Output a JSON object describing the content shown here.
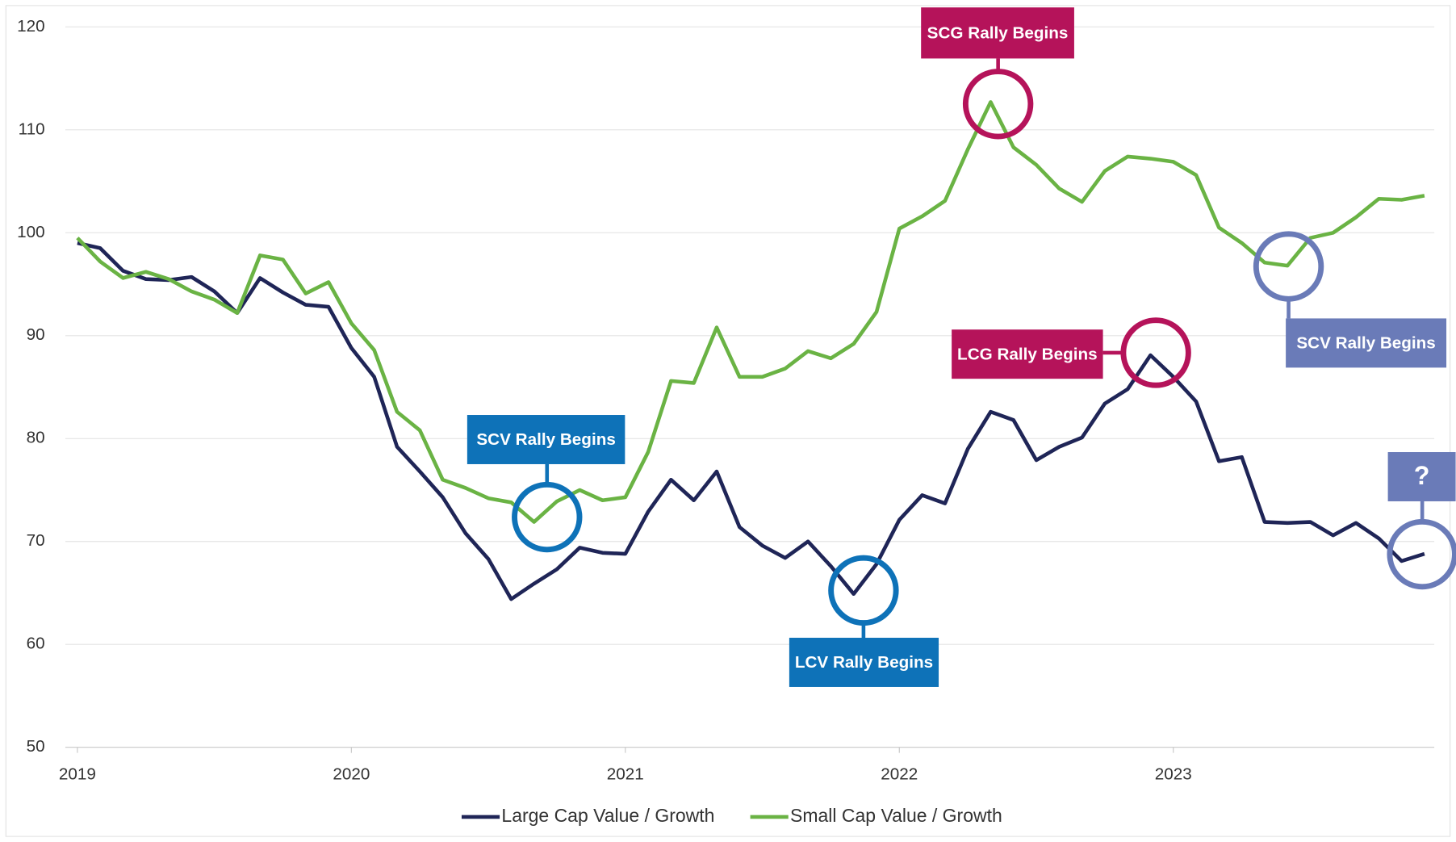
{
  "chart_data": {
    "type": "line",
    "categories": [
      "2019",
      null,
      null,
      null,
      null,
      null,
      null,
      null,
      null,
      null,
      null,
      null,
      "2020",
      null,
      null,
      null,
      null,
      null,
      null,
      null,
      null,
      null,
      null,
      null,
      "2021",
      null,
      null,
      null,
      null,
      null,
      null,
      null,
      null,
      null,
      null,
      null,
      "2022",
      null,
      null,
      null,
      null,
      null,
      null,
      null,
      null,
      null,
      null,
      null,
      "2023",
      null,
      null,
      null,
      null,
      null,
      null,
      null,
      null,
      null,
      null,
      null
    ],
    "series": [
      {
        "name": "Large Cap Value / Growth",
        "color": "#1f2557",
        "values": [
          99,
          98.5,
          96.3,
          95.5,
          95.4,
          95.7,
          94.3,
          92.2,
          95.6,
          94.2,
          93,
          92.8,
          88.8,
          86,
          79.2,
          76.8,
          74.3,
          70.8,
          68.3,
          64.4,
          65.9,
          67.3,
          69.4,
          68.9,
          68.8,
          72.9,
          76,
          74,
          76.8,
          71.4,
          69.6,
          68.4,
          70,
          67.6,
          64.9,
          67.8,
          72.1,
          74.5,
          73.7,
          79,
          82.6,
          81.8,
          77.9,
          79.2,
          80.1,
          83.4,
          84.8,
          88.1,
          86,
          83.6,
          77.8,
          78.2,
          71.9,
          71.8,
          71.9,
          70.6,
          71.8,
          70.3,
          68.1,
          68.8
        ]
      },
      {
        "name": "Small Cap Value / Growth",
        "color": "#6ab344",
        "values": [
          99.5,
          97.2,
          95.6,
          96.2,
          95.5,
          94.3,
          93.5,
          92.2,
          97.8,
          97.4,
          94.1,
          95.2,
          91.2,
          88.6,
          82.6,
          80.8,
          76,
          75.2,
          74.2,
          73.8,
          71.9,
          73.9,
          75,
          74,
          74.3,
          78.7,
          85.6,
          85.4,
          90.8,
          86,
          86,
          86.8,
          88.5,
          87.8,
          89.2,
          92.3,
          100.4,
          101.6,
          103.1,
          108.1,
          112.7,
          108.3,
          106.6,
          104.3,
          103,
          106,
          107.4,
          107.2,
          106.9,
          105.6,
          100.5,
          99,
          97.1,
          96.8,
          99.5,
          100,
          101.5,
          103.3,
          103.2,
          103.6
        ]
      }
    ],
    "ylim": [
      50,
      120
    ],
    "yticks": [
      50,
      60,
      70,
      80,
      90,
      100,
      110,
      120
    ],
    "grid": true,
    "legend": "bottom",
    "annotations": [
      {
        "text": "SCG Rally Begins",
        "color": "#b5135a"
      },
      {
        "text": "SCV Rally Begins",
        "color": "#0e72b8"
      },
      {
        "text": "LCV Rally Begins",
        "color": "#0e72b8"
      },
      {
        "text": "LCG Rally Begins",
        "color": "#b5135a"
      },
      {
        "text": "SCV Rally Begins",
        "color": "#6a7bb8"
      },
      {
        "text": "?",
        "color": "#6a7bb8"
      }
    ]
  }
}
